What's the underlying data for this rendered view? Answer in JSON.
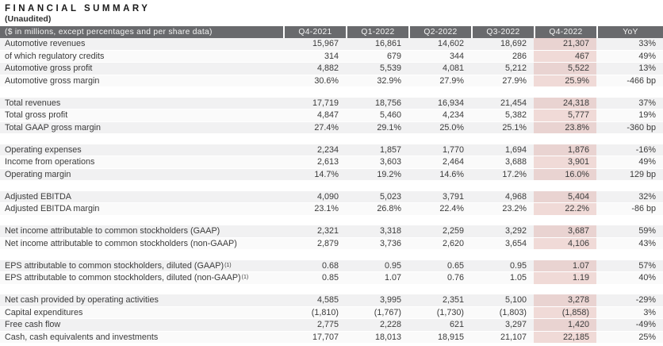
{
  "title": "FINANCIAL SUMMARY",
  "subtitle": "(Unaudited)",
  "colors": {
    "header_bg": "#696a6d",
    "header_text": "#f4f4f4",
    "stripe_gray": "#f1f1f2",
    "stripe_light": "#fafafa",
    "highlight_pink": "#f2d9d6",
    "body_text": "#3b3b3b"
  },
  "table": {
    "label_header": "($ in millions, except percentages and per share data)",
    "columns": [
      "Q4-2021",
      "Q1-2022",
      "Q2-2022",
      "Q3-2022",
      "Q4-2022",
      "YoY"
    ],
    "highlight_column": "Q4-2022",
    "groups": [
      {
        "rows": [
          {
            "label": "Automotive revenues",
            "values": [
              "15,967",
              "16,861",
              "14,602",
              "18,692",
              "21,307",
              "33%"
            ]
          },
          {
            "label": "of which regulatory credits",
            "indent": true,
            "values": [
              "314",
              "679",
              "344",
              "286",
              "467",
              "49%"
            ]
          },
          {
            "label": "Automotive gross profit",
            "values": [
              "4,882",
              "5,539",
              "4,081",
              "5,212",
              "5,522",
              "13%"
            ]
          },
          {
            "label": "Automotive gross margin",
            "values": [
              "30.6%",
              "32.9%",
              "27.9%",
              "27.9%",
              "25.9%",
              "-466 bp"
            ]
          }
        ]
      },
      {
        "rows": [
          {
            "label": "Total revenues",
            "values": [
              "17,719",
              "18,756",
              "16,934",
              "21,454",
              "24,318",
              "37%"
            ]
          },
          {
            "label": "Total gross profit",
            "values": [
              "4,847",
              "5,460",
              "4,234",
              "5,382",
              "5,777",
              "19%"
            ]
          },
          {
            "label": "Total GAAP gross margin",
            "values": [
              "27.4%",
              "29.1%",
              "25.0%",
              "25.1%",
              "23.8%",
              "-360 bp"
            ]
          }
        ]
      },
      {
        "rows": [
          {
            "label": "Operating expenses",
            "values": [
              "2,234",
              "1,857",
              "1,770",
              "1,694",
              "1,876",
              "-16%"
            ]
          },
          {
            "label": "Income from operations",
            "values": [
              "2,613",
              "3,603",
              "2,464",
              "3,688",
              "3,901",
              "49%"
            ]
          },
          {
            "label": "Operating margin",
            "values": [
              "14.7%",
              "19.2%",
              "14.6%",
              "17.2%",
              "16.0%",
              "129 bp"
            ]
          }
        ]
      },
      {
        "rows": [
          {
            "label": "Adjusted EBITDA",
            "values": [
              "4,090",
              "5,023",
              "3,791",
              "4,968",
              "5,404",
              "32%"
            ]
          },
          {
            "label": "Adjusted EBITDA margin",
            "values": [
              "23.1%",
              "26.8%",
              "22.4%",
              "23.2%",
              "22.2%",
              "-86 bp"
            ]
          }
        ]
      },
      {
        "rows": [
          {
            "label": "Net income attributable to common stockholders (GAAP)",
            "values": [
              "2,321",
              "3,318",
              "2,259",
              "3,292",
              "3,687",
              "59%"
            ]
          },
          {
            "label": "Net income attributable to common stockholders (non-GAAP)",
            "values": [
              "2,879",
              "3,736",
              "2,620",
              "3,654",
              "4,106",
              "43%"
            ]
          }
        ]
      },
      {
        "rows": [
          {
            "label": "EPS attributable to common stockholders, diluted (GAAP)",
            "sup": "(1)",
            "values": [
              "0.68",
              "0.95",
              "0.65",
              "0.95",
              "1.07",
              "57%"
            ]
          },
          {
            "label": "EPS attributable to common stockholders, diluted (non-GAAP)",
            "sup": "(1)",
            "values": [
              "0.85",
              "1.07",
              "0.76",
              "1.05",
              "1.19",
              "40%"
            ]
          }
        ]
      },
      {
        "rows": [
          {
            "label": "Net cash provided by operating activities",
            "values": [
              "4,585",
              "3,995",
              "2,351",
              "5,100",
              "3,278",
              "-29%"
            ]
          },
          {
            "label": "Capital expenditures",
            "values": [
              "(1,810)",
              "(1,767)",
              "(1,730)",
              "(1,803)",
              "(1,858)",
              "3%"
            ]
          },
          {
            "label": "Free cash flow",
            "values": [
              "2,775",
              "2,228",
              "621",
              "3,297",
              "1,420",
              "-49%"
            ]
          },
          {
            "label": "Cash, cash equivalents and investments",
            "values": [
              "17,707",
              "18,013",
              "18,915",
              "21,107",
              "22,185",
              "25%"
            ]
          }
        ]
      }
    ]
  }
}
